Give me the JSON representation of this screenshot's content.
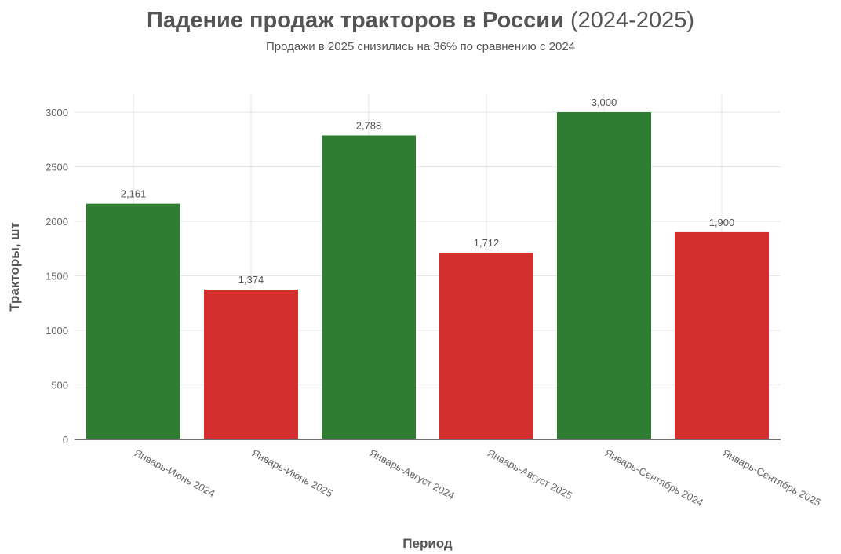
{
  "chart_data": {
    "type": "bar",
    "title_main": "Падение продаж тракторов в России",
    "title_years": "(2024-2025)",
    "subtitle": "Продажи в 2025 снизились на 36% по сравнению с 2024",
    "xlabel": "Период",
    "ylabel": "Тракторы, шт",
    "ylim": [
      0,
      3000
    ],
    "yticks": [
      "0",
      "500",
      "1000",
      "1500",
      "2000",
      "2500",
      "3000"
    ],
    "ytick_values": [
      0,
      500,
      1000,
      1500,
      2000,
      2500,
      3000
    ],
    "grid": true,
    "categories": [
      "Январь-Июнь 2024",
      "Январь-Июнь 2025",
      "Январь-Август 2024",
      "Январь-Август 2025",
      "Январь-Сентябрь 2024",
      "Январь-Сентябрь 2025"
    ],
    "values": [
      2161,
      1374,
      2788,
      1712,
      3000,
      1900
    ],
    "data_labels": [
      "2,161",
      "1,374",
      "2,788",
      "1,712",
      "3,000",
      "1,900"
    ],
    "bar_colors": [
      "#2e7d32",
      "#d32f2f",
      "#2e7d32",
      "#d32f2f",
      "#2e7d32",
      "#d32f2f"
    ],
    "colors": {
      "increase_2024": "#2e7d32",
      "decrease_2025": "#d32f2f",
      "grid": "#e6e6e6",
      "axis": "#444444"
    }
  }
}
